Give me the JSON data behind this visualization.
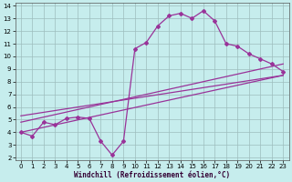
{
  "xlabel": "Windchill (Refroidissement éolien,°C)",
  "bg_color": "#c6eded",
  "grid_color": "#9dbdbd",
  "line_color": "#993399",
  "xlim": [
    -0.5,
    23.5
  ],
  "ylim": [
    1.8,
    14.2
  ],
  "xticks": [
    0,
    1,
    2,
    3,
    4,
    5,
    6,
    7,
    8,
    9,
    10,
    11,
    12,
    13,
    14,
    15,
    16,
    17,
    18,
    19,
    20,
    21,
    22,
    23
  ],
  "yticks": [
    2,
    3,
    4,
    5,
    6,
    7,
    8,
    9,
    10,
    11,
    12,
    13,
    14
  ],
  "main_x": [
    0,
    1,
    2,
    3,
    4,
    5,
    6,
    7,
    8,
    9,
    10,
    11,
    12,
    13,
    14,
    15,
    16,
    17,
    18,
    19,
    20,
    21,
    22,
    23
  ],
  "main_y": [
    4.0,
    3.7,
    4.8,
    4.6,
    5.1,
    5.2,
    5.1,
    3.3,
    2.2,
    3.3,
    10.6,
    11.1,
    12.4,
    13.2,
    13.4,
    13.0,
    13.6,
    12.8,
    11.0,
    10.8,
    10.2,
    9.8,
    9.4,
    8.8
  ],
  "line1_x": [
    0,
    23
  ],
  "line1_y": [
    4.0,
    8.5
  ],
  "line2_x": [
    0,
    23
  ],
  "line2_y": [
    4.8,
    9.4
  ],
  "line3_x": [
    0,
    23
  ],
  "line3_y": [
    5.3,
    8.5
  ]
}
